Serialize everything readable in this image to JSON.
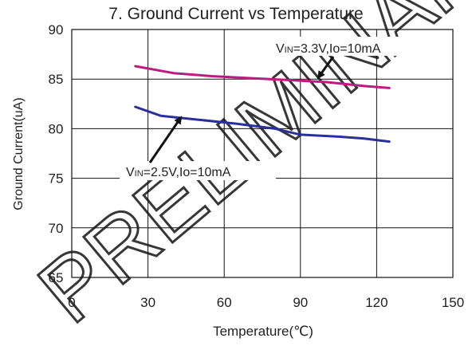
{
  "chart_data": {
    "type": "line",
    "title": "7. Ground Current vs Temperature",
    "xlabel": "Temperature(℃)",
    "ylabel": "Ground Current(uA)",
    "xlim": [
      0,
      150
    ],
    "ylim": [
      65,
      90
    ],
    "xticks": [
      "0",
      "30",
      "60",
      "90",
      "120",
      "150"
    ],
    "yticks": [
      "65",
      "70",
      "75",
      "80",
      "85",
      "90"
    ],
    "grid": true,
    "series": [
      {
        "name": "VIN=3.3V,Io=10mA",
        "color": "#c0197f",
        "x": [
          25,
          40,
          55,
          70,
          85,
          100,
          115,
          125
        ],
        "y": [
          86.3,
          85.6,
          85.3,
          85.1,
          84.9,
          84.7,
          84.3,
          84.1
        ]
      },
      {
        "name": "VIN=2.5V,Io=10mA",
        "color": "#2a2f9e",
        "x": [
          25,
          35,
          50,
          65,
          80,
          90,
          105,
          115,
          125
        ],
        "y": [
          82.2,
          81.3,
          80.9,
          80.5,
          80.0,
          79.4,
          79.2,
          79.0,
          78.7
        ]
      }
    ],
    "annotations": [
      {
        "vin": "V",
        "sub": "IN",
        "rest": "=3.3V,Io=10mA",
        "target_x": 97,
        "target_y": 84.9
      },
      {
        "vin": "V",
        "sub": "IN",
        "rest": "=2.5V,Io=10mA",
        "target_x": 43,
        "target_y": 80.9
      }
    ]
  },
  "watermark": "PRELIMINARY DESIGN"
}
